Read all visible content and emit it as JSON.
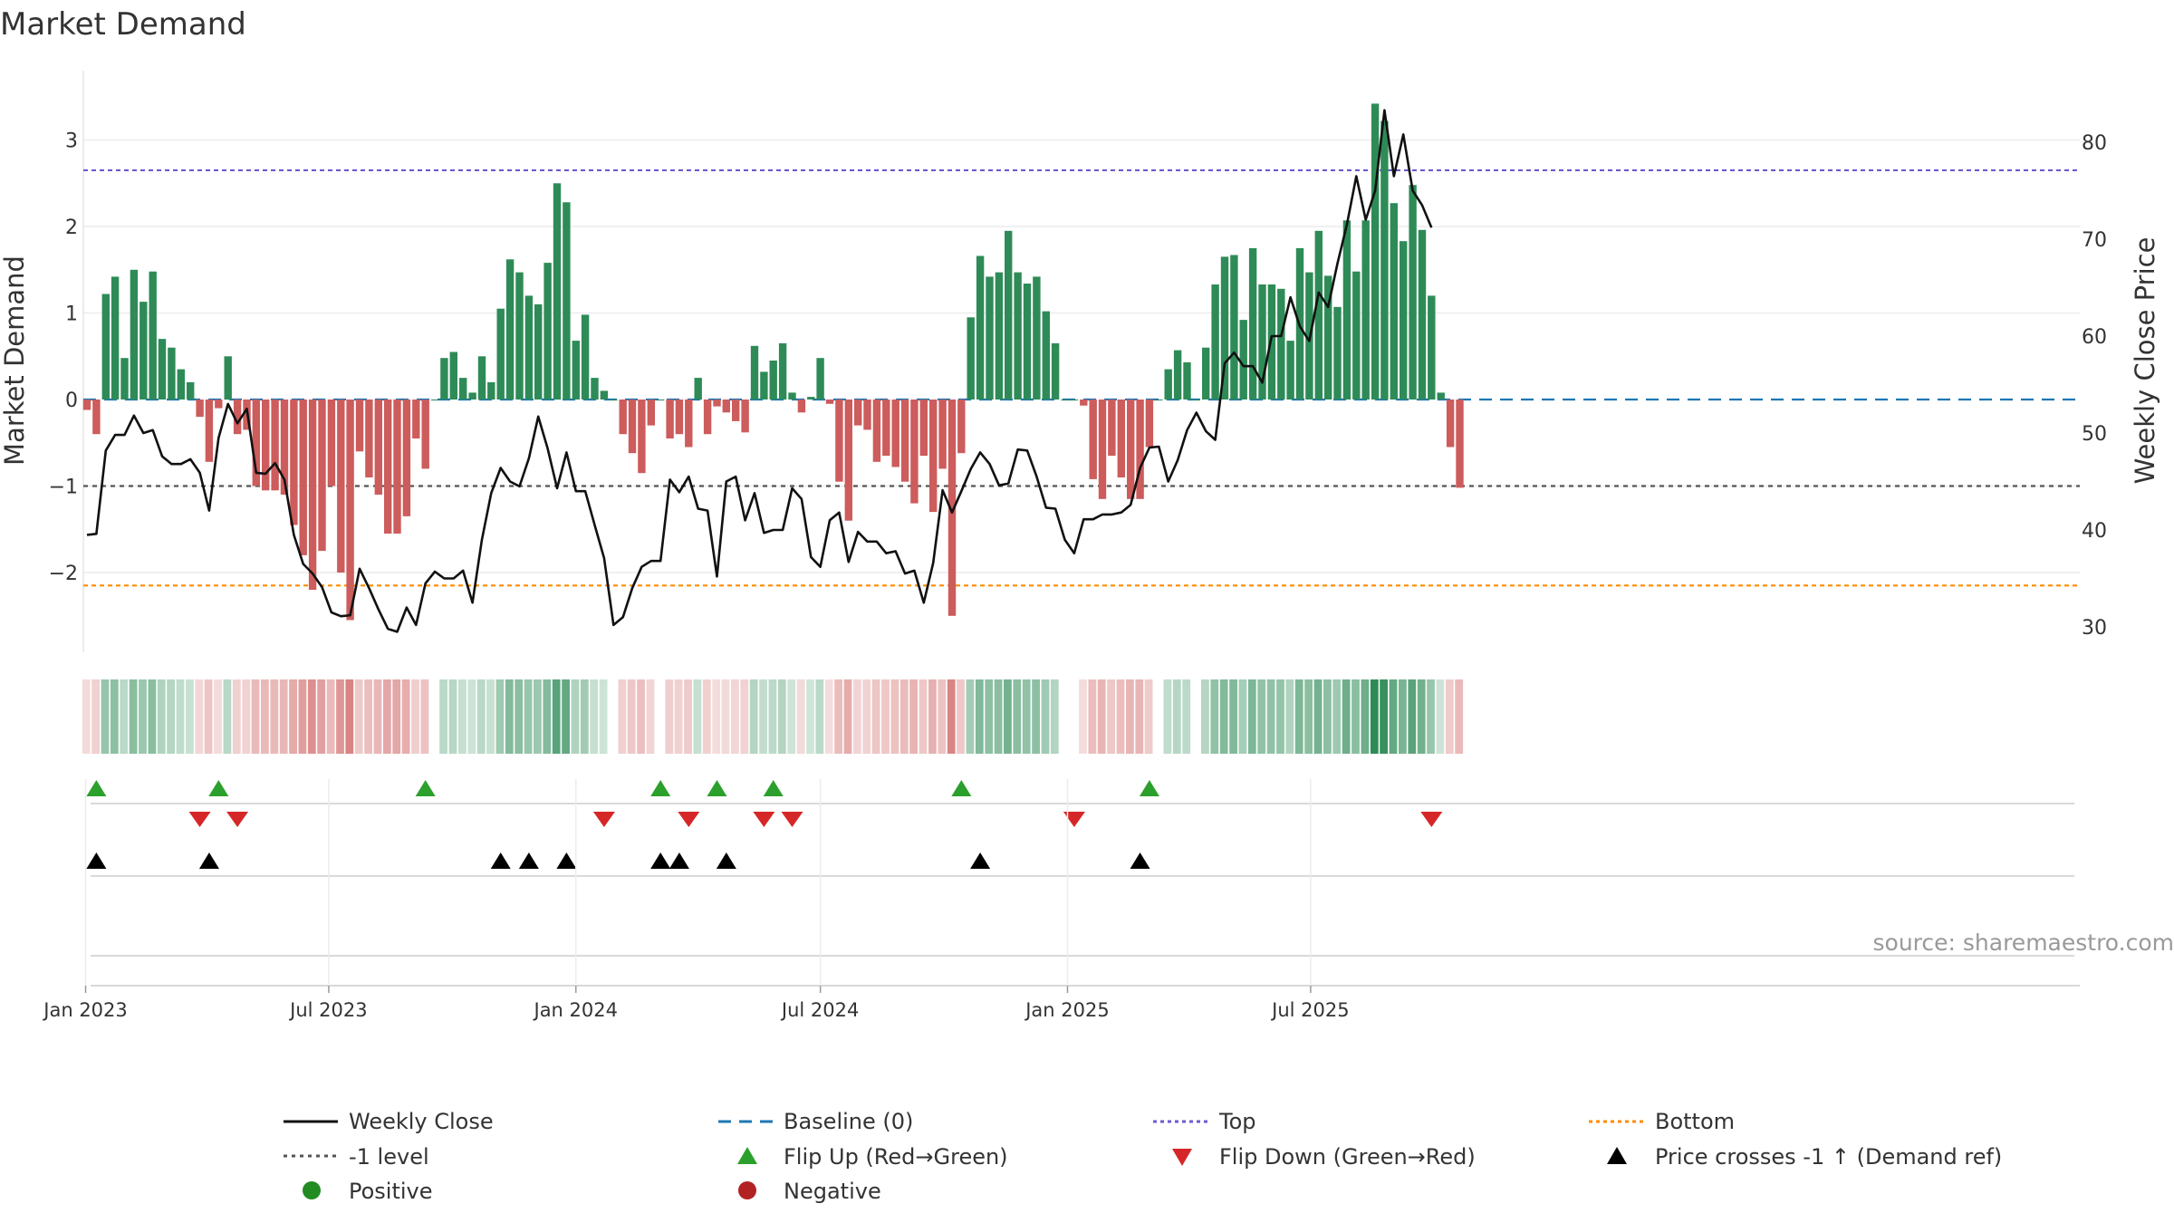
{
  "chart_data": {
    "type": "bar",
    "title": "Market Demand",
    "ylabel": "Market Demand",
    "y2label": "Weekly Close Price",
    "ylim": [
      -2.8,
      3.8
    ],
    "y2lim": [
      27,
      86
    ],
    "yticks": [
      "3",
      "2",
      "1",
      "0",
      "−1",
      "−2"
    ],
    "y2ticks": [
      "80",
      "70",
      "60",
      "50",
      "40",
      "30"
    ],
    "x_start": "2023-01-02",
    "xticks": [
      "Jan 2023",
      "Jul 2023",
      "Jan 2024",
      "Jul 2024",
      "Jan 2025",
      "Jul 2025"
    ],
    "reference_lines": {
      "top": 2.65,
      "bottom": -2.15,
      "minus_one": -1,
      "baseline": 0
    },
    "series": [
      {
        "name": "Market Demand",
        "values": [
          -0.12,
          -0.4,
          1.22,
          1.42,
          0.48,
          1.5,
          1.13,
          1.48,
          0.7,
          0.6,
          0.35,
          0.2,
          -0.2,
          -0.72,
          -0.1,
          0.5,
          -0.4,
          -0.35,
          -1.0,
          -1.05,
          -1.05,
          -1.1,
          -1.45,
          -1.8,
          -2.2,
          -1.75,
          -1.0,
          -2.0,
          -2.55,
          -0.6,
          -0.9,
          -1.1,
          -1.55,
          -1.55,
          -1.35,
          -0.45,
          -0.8,
          0.0,
          0.48,
          0.55,
          0.25,
          0.08,
          0.5,
          0.2,
          1.05,
          1.62,
          1.47,
          1.2,
          1.1,
          1.58,
          2.5,
          2.28,
          0.68,
          0.98,
          0.25,
          0.1,
          0.0,
          -0.4,
          -0.62,
          -0.85,
          -0.3,
          0.0,
          -0.45,
          -0.4,
          -0.55,
          0.25,
          -0.4,
          -0.08,
          -0.15,
          -0.25,
          -0.38,
          0.62,
          0.32,
          0.45,
          0.65,
          0.08,
          -0.15,
          0.03,
          0.48,
          -0.05,
          -0.95,
          -1.4,
          -0.3,
          -0.35,
          -0.72,
          -0.65,
          -0.78,
          -0.95,
          -1.2,
          -0.65,
          -1.3,
          -0.8,
          -2.5,
          -0.62,
          0.95,
          1.66,
          1.42,
          1.47,
          1.95,
          1.47,
          1.34,
          1.42,
          1.02,
          0.65,
          0.0,
          0.0,
          -0.07,
          -0.92,
          -1.15,
          -0.65,
          -0.9,
          -1.15,
          -1.15,
          -0.55,
          0.0,
          0.35,
          0.57,
          0.43,
          0.0,
          0.6,
          1.33,
          1.65,
          1.67,
          0.92,
          1.75,
          1.33,
          1.33,
          1.28,
          0.68,
          1.75,
          1.47,
          1.95,
          1.43,
          1.07,
          2.07,
          1.48,
          2.07,
          3.42,
          3.22,
          2.27,
          1.83,
          2.48,
          1.96,
          1.2,
          0.08,
          -0.55,
          -1.02
        ]
      },
      {
        "name": "Weekly Close",
        "values": [
          39.5,
          39.6,
          48.2,
          49.8,
          49.8,
          51.8,
          50.0,
          50.3,
          47.6,
          46.8,
          46.8,
          47.3,
          45.9,
          42.0,
          49.5,
          53.0,
          51.0,
          52.5,
          45.9,
          45.8,
          46.9,
          45.2,
          39.5,
          36.5,
          35.5,
          34.1,
          31.5,
          31.1,
          31.2,
          36.0,
          34.0,
          31.8,
          29.8,
          29.5,
          32.0,
          30.2,
          34.5,
          35.7,
          35.0,
          35.0,
          35.8,
          32.5,
          39.0,
          43.8,
          46.4,
          45.0,
          44.5,
          47.4,
          51.7,
          48.4,
          44.3,
          48.0,
          44.0,
          44.0,
          40.5,
          37.1,
          30.2,
          31.0,
          34.0,
          36.2,
          36.8,
          36.8,
          45.2,
          43.9,
          45.5,
          42.2,
          42.0,
          35.2,
          45.0,
          45.5,
          41.0,
          43.8,
          39.7,
          40.0,
          40.0,
          44.3,
          43.2,
          37.2,
          36.2,
          41.0,
          41.8,
          36.7,
          39.8,
          38.8,
          38.8,
          37.6,
          37.8,
          35.5,
          35.8,
          32.5,
          36.6,
          44.1,
          41.8,
          44.0,
          46.3,
          48.0,
          46.8,
          44.6,
          44.8,
          48.3,
          48.2,
          45.5,
          42.3,
          42.2,
          39.0,
          37.6,
          41.1,
          41.1,
          41.6,
          41.6,
          41.8,
          42.6,
          46.4,
          48.5,
          48.6,
          45.0,
          47.2,
          50.3,
          52.1,
          50.2,
          49.3,
          57.2,
          58.3,
          56.9,
          56.9,
          55.2,
          60.0,
          60.0,
          64.0,
          61.0,
          59.5,
          64.5,
          63.0,
          67.5,
          71.5,
          76.5,
          72.0,
          75.0,
          83.3,
          76.5,
          80.8,
          75.0,
          73.5,
          71.2
        ]
      }
    ],
    "flip_up_weeks": [
      1,
      14,
      36,
      61,
      67,
      73,
      93,
      113
    ],
    "flip_down_weeks": [
      12,
      16,
      55,
      64,
      72,
      75,
      105,
      143
    ],
    "price_cross_weeks": [
      1,
      13,
      44,
      47,
      51,
      61,
      63,
      68,
      95,
      112
    ],
    "legend": {
      "weekly_close": "Weekly Close",
      "baseline": "Baseline (0)",
      "top": "Top",
      "bottom": "Bottom",
      "minus_one": "-1 level",
      "flip_up": "Flip Up (Red→Green)",
      "flip_down": "Flip Down (Green→Red)",
      "price_cross": "Price crosses -1 ↑ (Demand ref)",
      "positive": "Positive",
      "negative": "Negative"
    },
    "source": "source: sharemaestro.com"
  },
  "colors": {
    "positive_bar": "#2e8b57",
    "negative_bar": "#cd5c5c",
    "price_line": "#111111",
    "baseline": "#1f77b4",
    "top_line": "#6b5bcf",
    "bottom_line": "#ff8c00",
    "minus_one_line": "#555555",
    "flip_up": "#2ca02c",
    "flip_down": "#d62728",
    "price_cross": "#000000",
    "positive_dot": "#228b22",
    "negative_dot": "#b22222"
  }
}
